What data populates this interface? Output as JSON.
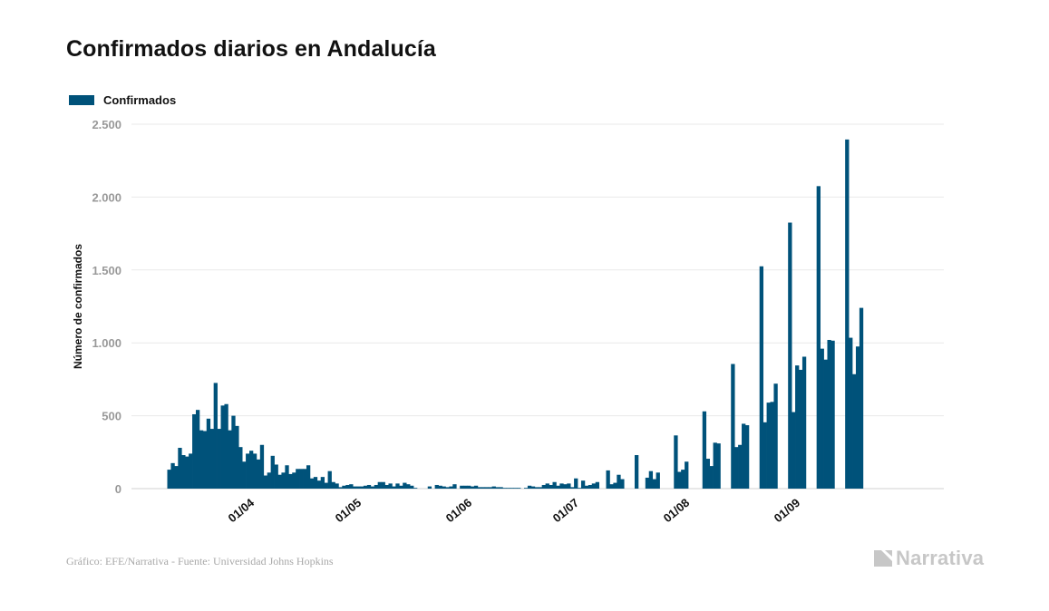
{
  "page": {
    "title": "Confirmados diarios en Andalucía",
    "source": "Gráfico: EFE/Narrativa - Fuente: Universidad Johns Hopkins",
    "brand": "Narrativa",
    "brand_icon": "narrativa-logo-icon"
  },
  "colors": {
    "bar": "#00527a",
    "grid": "#e9e9e9",
    "axis": "#d0d0d0"
  },
  "chart_data": {
    "type": "bar",
    "title": "Confirmados diarios en Andalucía",
    "xlabel": "",
    "ylabel": "Número de confirmados",
    "ylim": [
      0,
      2500
    ],
    "yticks": [
      0,
      500,
      1000,
      1500,
      2000,
      2500
    ],
    "ytick_labels": [
      "0",
      "500",
      "1.000",
      "1.500",
      "2.000",
      "2.500"
    ],
    "grid": true,
    "legend_position": "top-left",
    "start_date": "2020-03-10",
    "x_tick_labels": [
      {
        "date": "2020-04-01",
        "label": "01/04"
      },
      {
        "date": "2020-05-01",
        "label": "01/05"
      },
      {
        "date": "2020-06-01",
        "label": "01/06"
      },
      {
        "date": "2020-07-01",
        "label": "01/07"
      },
      {
        "date": "2020-08-01",
        "label": "01/08"
      },
      {
        "date": "2020-09-01",
        "label": "01/09"
      }
    ],
    "series": [
      {
        "name": "Confirmados",
        "values": [
          130,
          175,
          155,
          280,
          230,
          220,
          240,
          510,
          540,
          400,
          395,
          480,
          410,
          725,
          410,
          570,
          580,
          400,
          500,
          430,
          285,
          185,
          240,
          260,
          240,
          200,
          300,
          90,
          110,
          225,
          165,
          95,
          110,
          160,
          100,
          110,
          135,
          135,
          135,
          160,
          70,
          80,
          55,
          80,
          40,
          120,
          45,
          35,
          10,
          20,
          25,
          30,
          15,
          15,
          15,
          20,
          25,
          15,
          25,
          45,
          45,
          25,
          35,
          15,
          35,
          20,
          40,
          30,
          20,
          5,
          0,
          0,
          0,
          15,
          0,
          25,
          20,
          15,
          10,
          15,
          30,
          0,
          20,
          20,
          20,
          15,
          20,
          10,
          10,
          10,
          10,
          15,
          10,
          10,
          5,
          5,
          5,
          5,
          5,
          0,
          5,
          20,
          15,
          10,
          10,
          25,
          35,
          25,
          45,
          20,
          35,
          30,
          35,
          10,
          70,
          5,
          55,
          20,
          25,
          35,
          45,
          0,
          0,
          125,
          30,
          40,
          95,
          65,
          0,
          0,
          0,
          230,
          0,
          0,
          75,
          120,
          65,
          110,
          0,
          0,
          0,
          0,
          365,
          115,
          130,
          185,
          0,
          0,
          0,
          0,
          530,
          205,
          155,
          315,
          310,
          0,
          0,
          0,
          855,
          285,
          300,
          445,
          435,
          0,
          0,
          0,
          1525,
          455,
          590,
          595,
          720,
          0,
          0,
          0,
          1825,
          525,
          845,
          815,
          905,
          0,
          0,
          0,
          2075,
          960,
          885,
          1020,
          1015,
          0,
          0,
          0,
          2395,
          1035,
          785,
          975,
          1240
        ]
      }
    ]
  }
}
